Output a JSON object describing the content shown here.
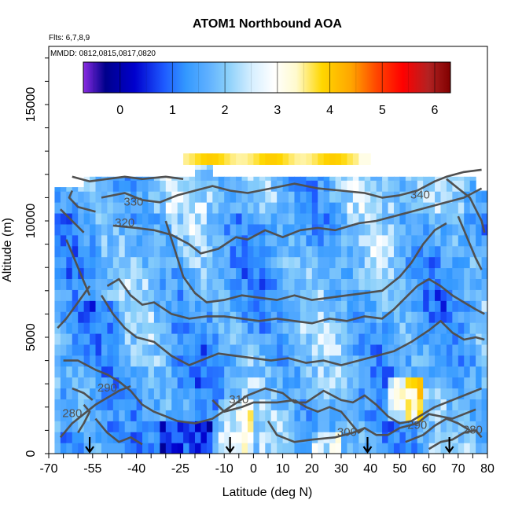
{
  "chart_data": {
    "type": "heatmap",
    "title": "ATOM1 Northbound AOA",
    "notes": [
      "Flts: 6,7,8,9",
      "MMDD: 0812,0815,0817,0820"
    ],
    "xlabel": "Latitude (deg N)",
    "ylabel": "Altitude (m)",
    "xlim": [
      -70,
      80
    ],
    "ylim": [
      0,
      17500
    ],
    "x_ticks": [
      -70,
      -55,
      -40,
      -25,
      -10,
      0,
      10,
      20,
      30,
      40,
      50,
      60,
      70,
      80
    ],
    "y_ticks": [
      0,
      5000,
      10000,
      15000
    ],
    "colorbar": {
      "range": [
        -0.7,
        6.3
      ],
      "ticks": [
        0,
        1,
        2,
        3,
        4,
        5,
        6
      ],
      "colors": [
        "#8a2be2",
        "#00008b",
        "#0000cd",
        "#1e5aff",
        "#3399ff",
        "#87cefa",
        "#ffffff",
        "#fffacd",
        "#ffd700",
        "#ffa500",
        "#ff4500",
        "#ff0000",
        "#b22222",
        "#800000"
      ],
      "placement": "top"
    },
    "markers": {
      "type": "down-arrow",
      "x": [
        -56,
        -8,
        39,
        67
      ]
    },
    "contours": [
      {
        "label": "290",
        "label_x": -50,
        "label_y": 2800
      },
      {
        "label": "280",
        "label_x": -62,
        "label_y": 1700
      },
      {
        "label": "310",
        "label_x": -5,
        "label_y": 2300
      },
      {
        "label": "300",
        "label_x": 32,
        "label_y": 900
      },
      {
        "label": "290",
        "label_x": 56,
        "label_y": 1200
      },
      {
        "label": "280",
        "label_x": 75,
        "label_y": 1000
      },
      {
        "label": "330",
        "label_x": -41,
        "label_y": 10800
      },
      {
        "label": "320",
        "label_x": -44,
        "label_y": 9900
      },
      {
        "label": "340",
        "label_x": 57,
        "label_y": 11100
      }
    ]
  }
}
